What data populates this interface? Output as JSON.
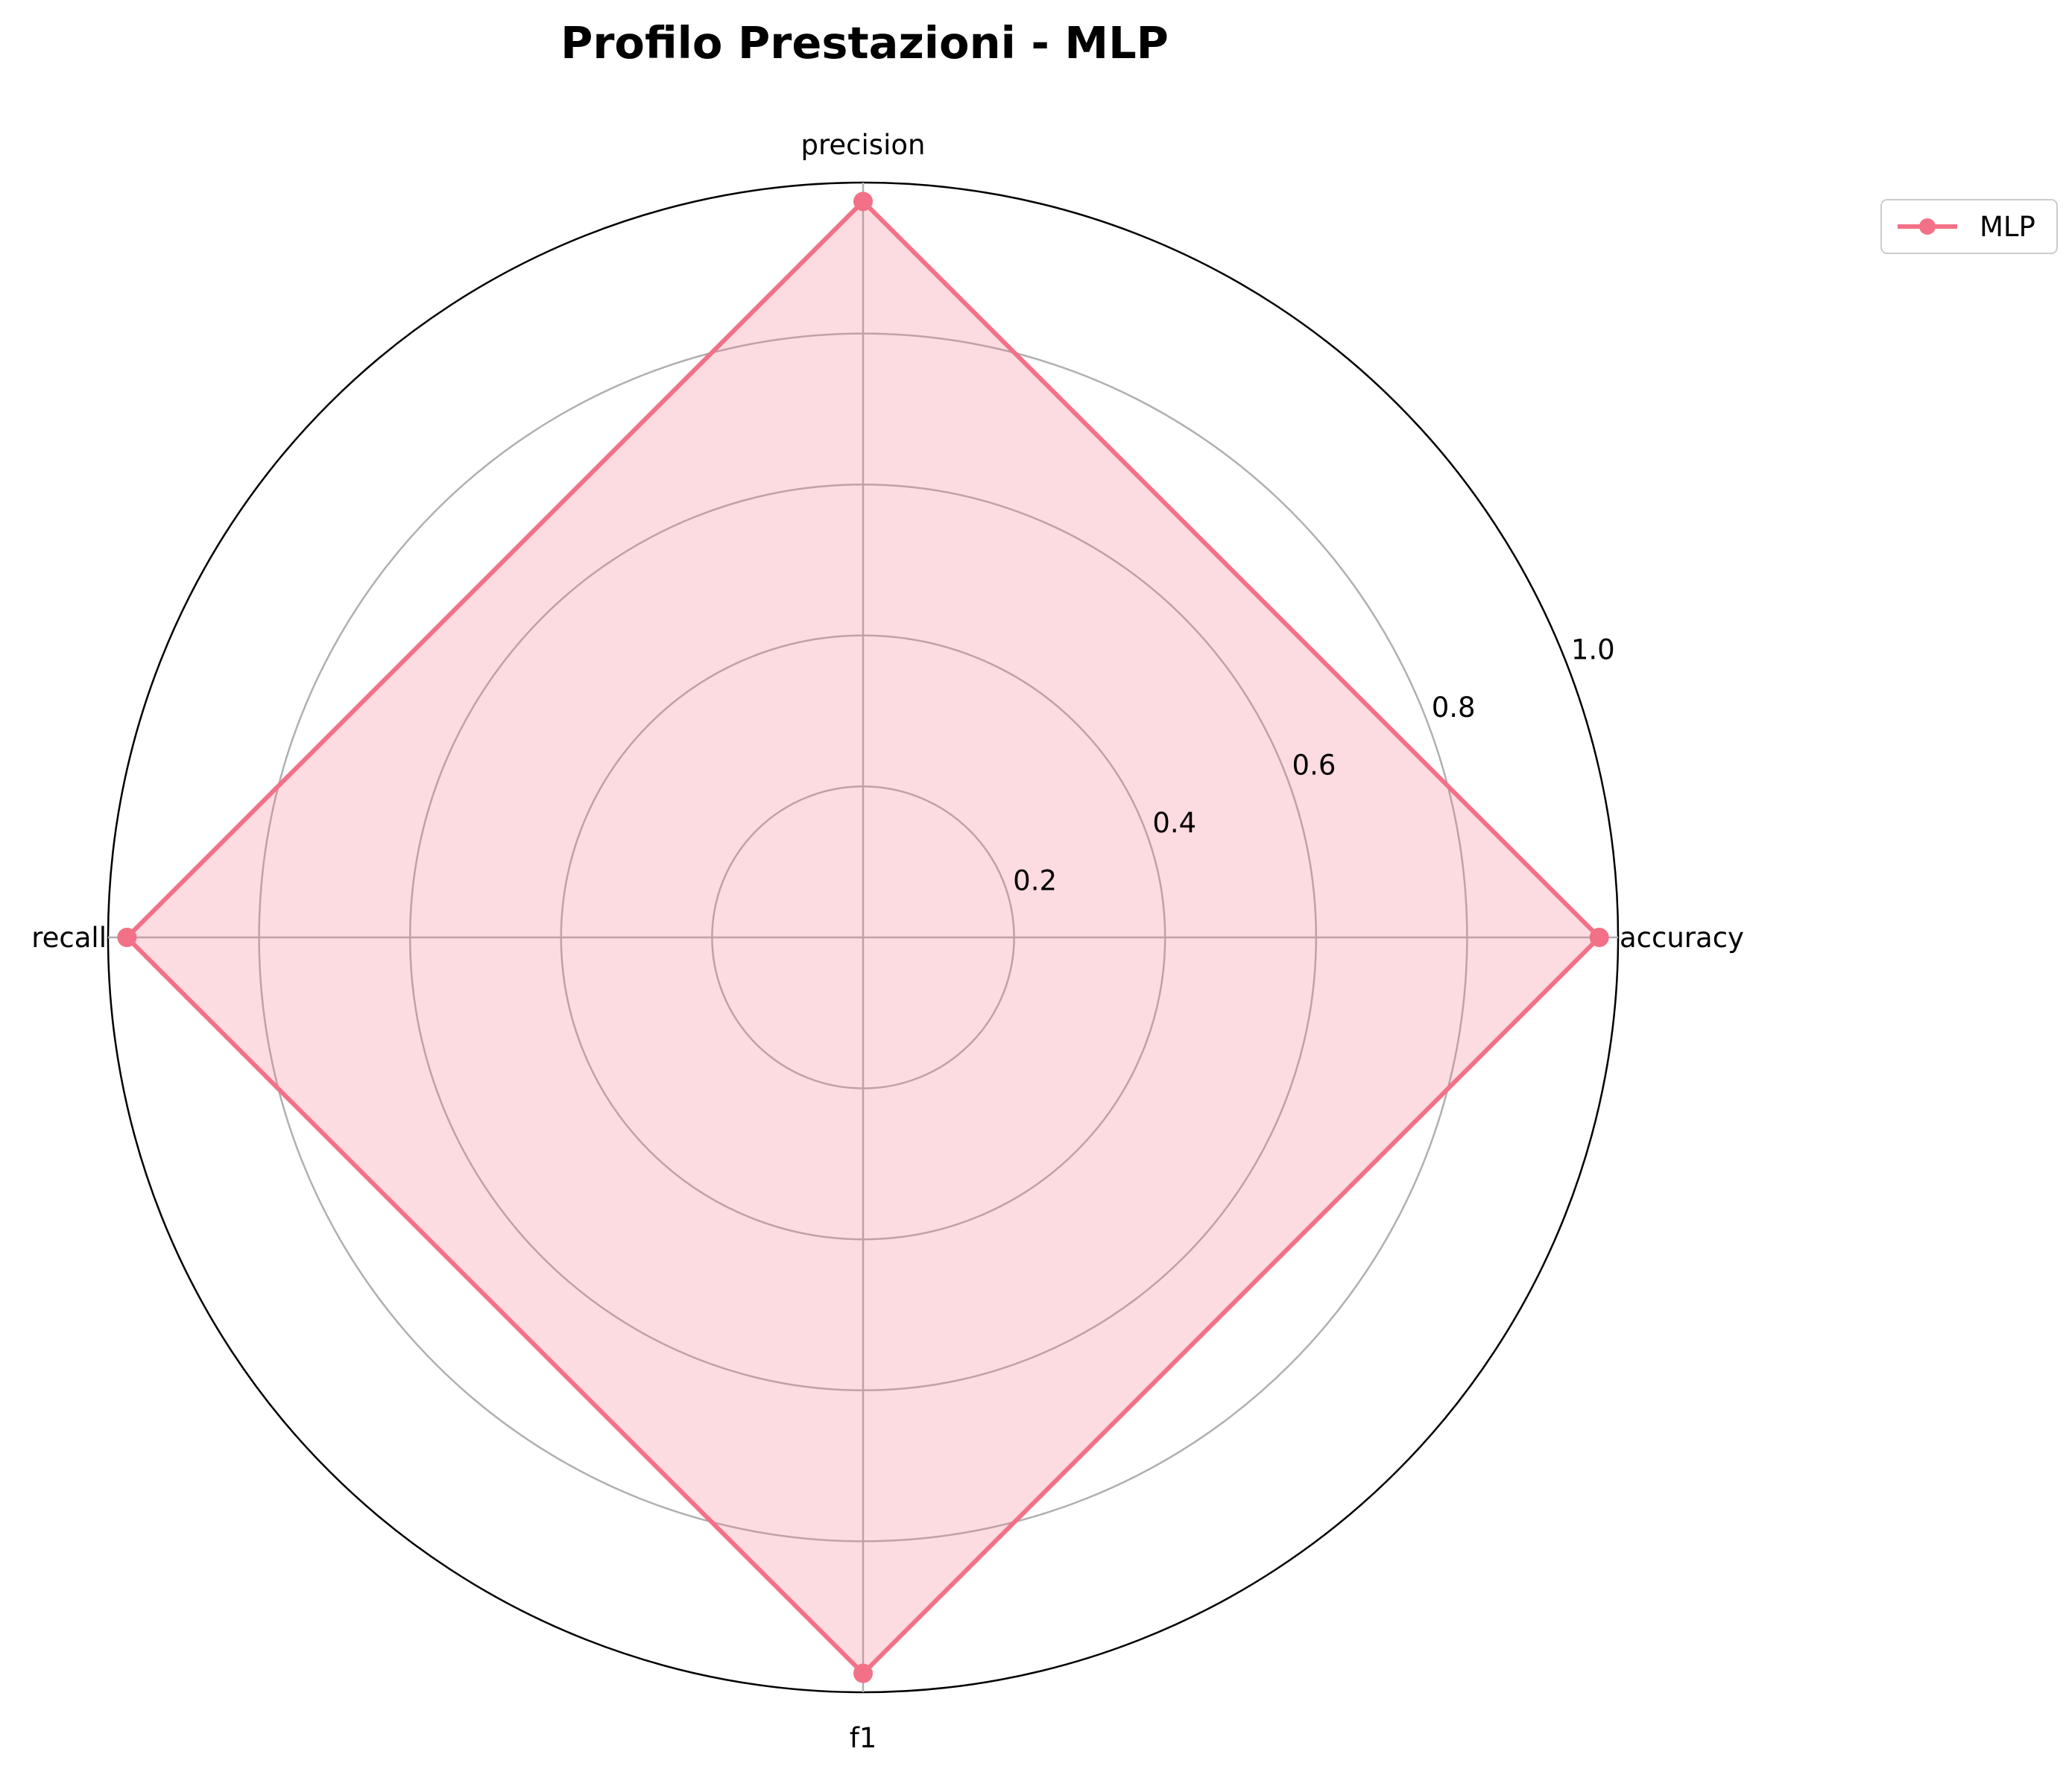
{
  "chart_data": {
    "type": "radar",
    "title": "Profilo Prestazioni - MLP",
    "categories": [
      "accuracy",
      "precision",
      "recall",
      "f1"
    ],
    "series": [
      {
        "name": "MLP",
        "values": [
          0.975,
          0.975,
          0.975,
          0.975
        ],
        "color": "#f37187"
      }
    ],
    "rlim": [
      0,
      1.0
    ],
    "rticks": [
      0.2,
      0.4,
      0.6,
      0.8,
      1.0
    ],
    "rtick_labels": [
      "0.2",
      "0.4",
      "0.6",
      "0.8",
      "1.0"
    ],
    "grid": true,
    "legend_position": "upper-right outside"
  }
}
